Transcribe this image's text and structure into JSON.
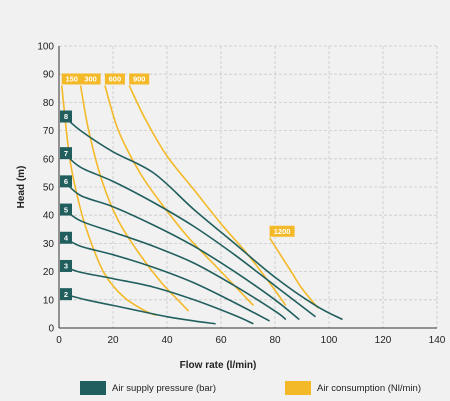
{
  "chart_data": {
    "type": "line",
    "xlabel": "Flow rate (l/min)",
    "ylabel": "Head (m)",
    "xlim": [
      0,
      140
    ],
    "ylim": [
      0,
      100
    ],
    "xticks": [
      0,
      20,
      40,
      60,
      80,
      100,
      120,
      140
    ],
    "yticks": [
      0,
      10,
      20,
      30,
      40,
      50,
      60,
      70,
      80,
      90,
      100
    ],
    "grid": "dashed",
    "colors": {
      "pressure": "#215f5e",
      "consumption": "#f4b928"
    },
    "legend": [
      {
        "label": "Air supply pressure (bar)",
        "color": "#215f5e"
      },
      {
        "label": "Air consumption (Nl/min)",
        "color": "#f4b928"
      }
    ],
    "pressure_series": [
      {
        "name": "2",
        "points": [
          [
            2,
            12
          ],
          [
            10,
            10
          ],
          [
            20,
            8
          ],
          [
            30,
            6
          ],
          [
            40,
            4
          ],
          [
            50,
            2.5
          ],
          [
            58,
            1.5
          ]
        ]
      },
      {
        "name": "3",
        "points": [
          [
            2,
            22
          ],
          [
            7,
            20
          ],
          [
            20,
            17.5
          ],
          [
            35,
            14.5
          ],
          [
            50,
            10
          ],
          [
            65,
            4.5
          ],
          [
            72,
            1.5
          ]
        ]
      },
      {
        "name": "4",
        "points": [
          [
            2,
            32
          ],
          [
            8,
            29
          ],
          [
            20,
            26
          ],
          [
            35,
            21.5
          ],
          [
            50,
            16
          ],
          [
            65,
            9
          ],
          [
            78,
            2.5
          ]
        ]
      },
      {
        "name": "5",
        "points": [
          [
            2,
            42
          ],
          [
            8,
            38
          ],
          [
            20,
            34
          ],
          [
            35,
            29
          ],
          [
            50,
            23
          ],
          [
            65,
            15
          ],
          [
            80,
            6
          ],
          [
            84,
            3
          ]
        ]
      },
      {
        "name": "6",
        "points": [
          [
            2,
            52
          ],
          [
            8,
            47
          ],
          [
            20,
            43
          ],
          [
            35,
            36.5
          ],
          [
            50,
            29
          ],
          [
            65,
            20
          ],
          [
            80,
            10
          ],
          [
            89,
            3
          ]
        ]
      },
      {
        "name": "7",
        "points": [
          [
            2,
            62
          ],
          [
            8,
            57
          ],
          [
            20,
            52
          ],
          [
            35,
            44.5
          ],
          [
            50,
            36
          ],
          [
            65,
            26
          ],
          [
            80,
            15
          ],
          [
            95,
            4
          ]
        ]
      },
      {
        "name": "8",
        "points": [
          [
            2,
            75
          ],
          [
            8,
            70
          ],
          [
            20,
            62.5
          ],
          [
            35,
            55
          ],
          [
            50,
            42
          ],
          [
            65,
            30
          ],
          [
            80,
            18
          ],
          [
            95,
            8
          ],
          [
            105,
            3
          ]
        ]
      }
    ],
    "consumption_series": [
      {
        "name": "150",
        "points": [
          [
            1,
            86
          ],
          [
            4,
            60
          ],
          [
            8,
            42
          ],
          [
            12,
            30
          ],
          [
            17,
            19
          ],
          [
            24,
            11
          ],
          [
            32,
            6
          ],
          [
            36,
            4.5
          ]
        ]
      },
      {
        "name": "300",
        "points": [
          [
            8,
            86
          ],
          [
            11,
            70
          ],
          [
            16,
            52
          ],
          [
            22,
            38
          ],
          [
            30,
            26
          ],
          [
            38,
            16
          ],
          [
            44,
            10
          ],
          [
            48,
            6
          ]
        ]
      },
      {
        "name": "600",
        "points": [
          [
            17,
            86
          ],
          [
            22,
            70
          ],
          [
            30,
            55
          ],
          [
            38,
            44
          ],
          [
            48,
            32
          ],
          [
            58,
            22
          ],
          [
            66,
            14
          ],
          [
            72,
            8
          ]
        ]
      },
      {
        "name": "900",
        "points": [
          [
            26,
            86
          ],
          [
            32,
            74
          ],
          [
            40,
            61
          ],
          [
            50,
            49
          ],
          [
            60,
            37
          ],
          [
            70,
            26
          ],
          [
            78,
            16
          ],
          [
            84,
            8
          ]
        ]
      },
      {
        "name": "1200",
        "points": [
          [
            78,
            32
          ],
          [
            82,
            26
          ],
          [
            86,
            20
          ],
          [
            90,
            14
          ],
          [
            96,
            7
          ]
        ]
      }
    ]
  }
}
